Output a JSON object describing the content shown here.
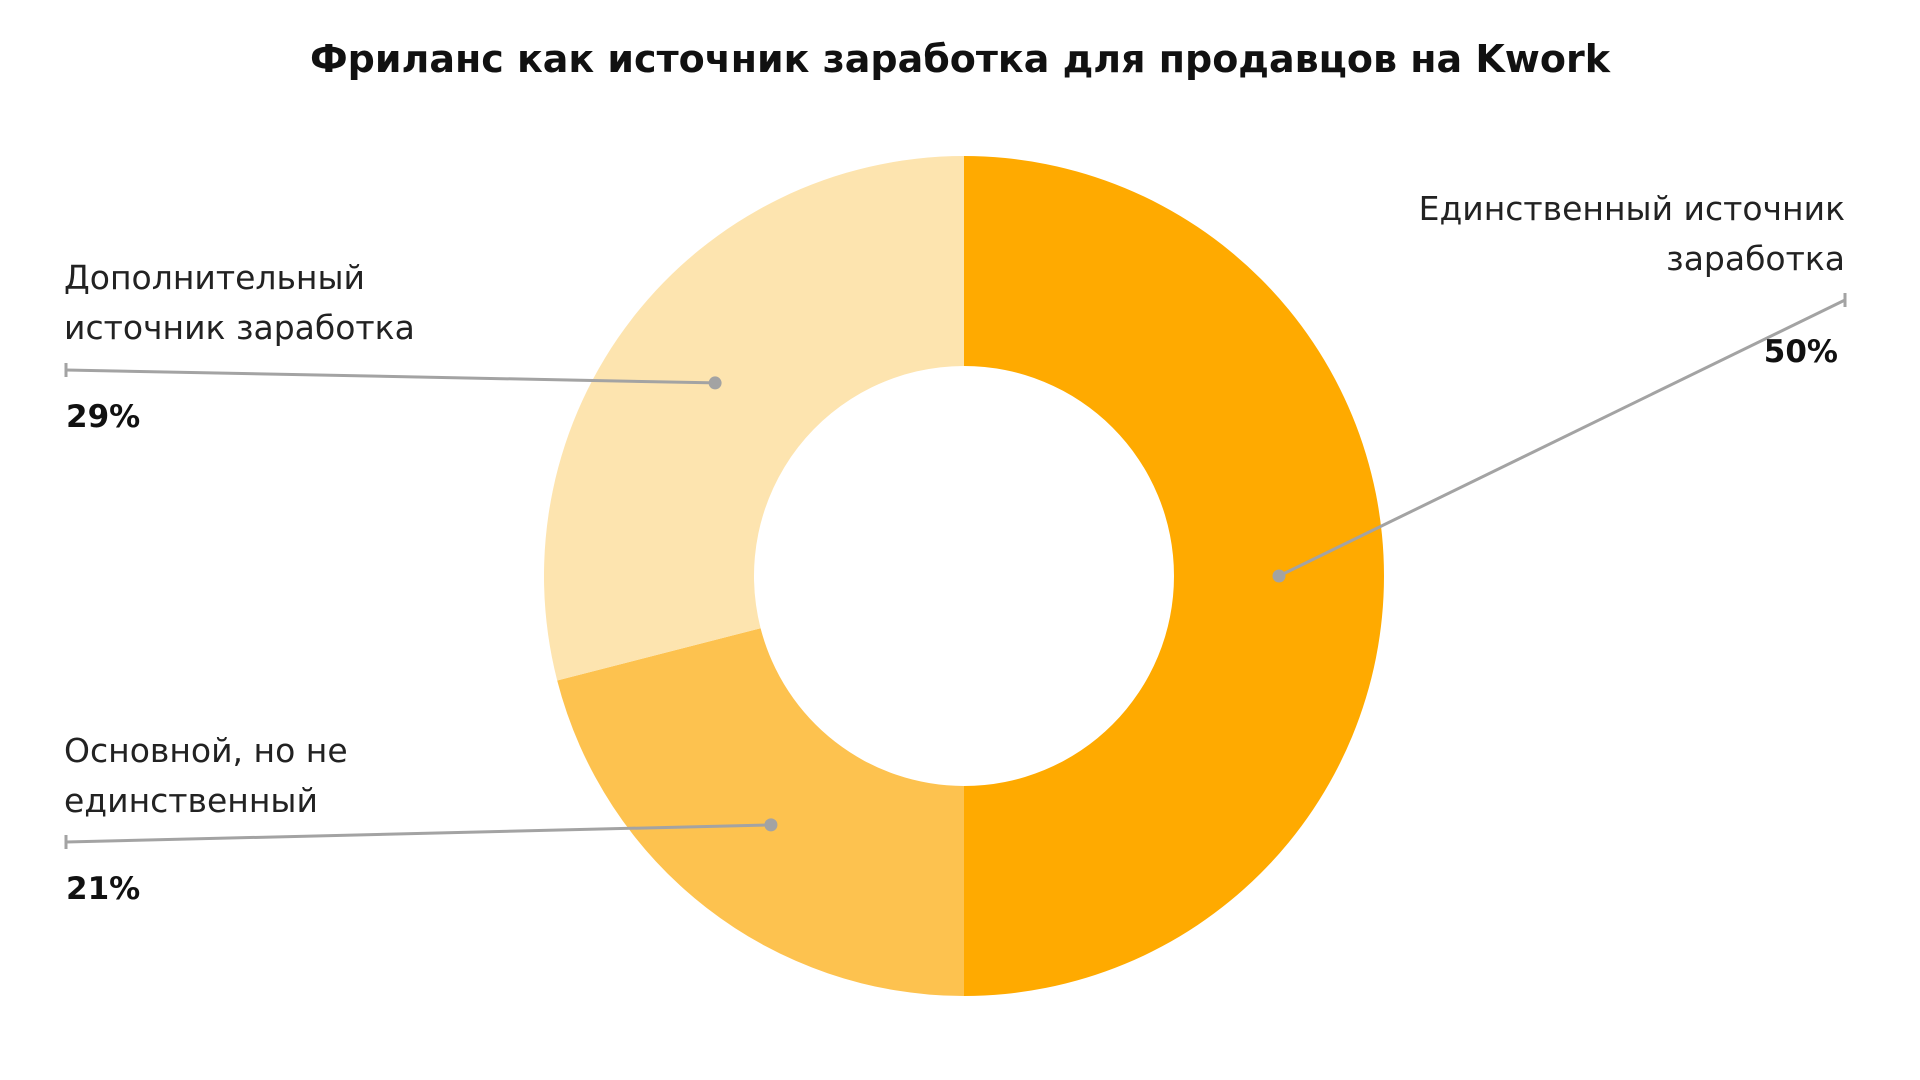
{
  "chart_data": {
    "type": "pie",
    "title": "Фриланс как источник заработка для продавцов на Kwork",
    "unit": "%",
    "slices": [
      {
        "label_lines": [
          "Единственный источник",
          "заработка"
        ],
        "value": 50,
        "value_label": "50%",
        "color": "#FFAA00"
      },
      {
        "label_lines": [
          "Основной, но не",
          "единственный"
        ],
        "value": 21,
        "value_label": "21%",
        "color": "#FDC24F"
      },
      {
        "label_lines": [
          "Дополнительный",
          "источник заработка"
        ],
        "value": 29,
        "value_label": "29%",
        "color": "#FDE4AF"
      }
    ],
    "donut": true,
    "start_angle": "12 o'clock",
    "direction": "clockwise",
    "legend": "none",
    "leader_color": "#A3A3A3"
  }
}
